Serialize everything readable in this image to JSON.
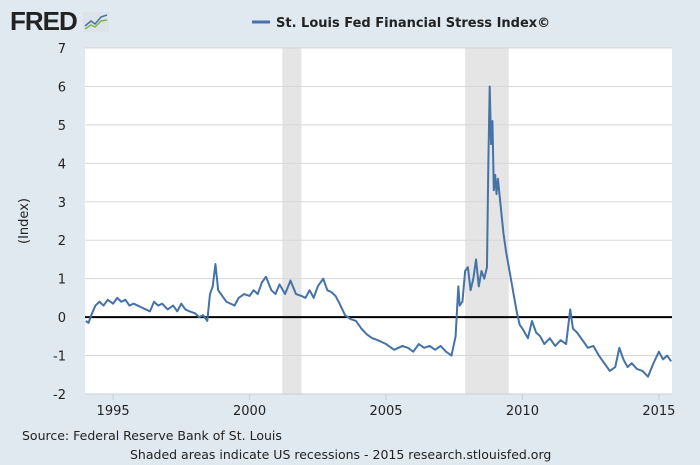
{
  "logo": "FRED",
  "chart_data": {
    "type": "line",
    "title": "St. Louis Fed Financial Stress Index©",
    "ylabel": "(Index)",
    "xlabel": "",
    "xlim": [
      1993.97,
      2015.48
    ],
    "ylim": [
      -2,
      7
    ],
    "yticks": [
      -2,
      -1,
      0,
      1,
      2,
      3,
      4,
      5,
      6,
      7
    ],
    "xticks": [
      1995,
      2000,
      2005,
      2010,
      2015
    ],
    "grid": true,
    "legend": "top",
    "series_color": "#4572a7",
    "recessions": [
      [
        2001.2,
        2001.9
      ],
      [
        2007.9,
        2009.5
      ]
    ],
    "series": [
      {
        "name": "St. Louis Fed Financial Stress Index©",
        "x": [
          1994.0,
          1994.1,
          1994.2,
          1994.35,
          1994.5,
          1994.65,
          1994.8,
          1995.0,
          1995.15,
          1995.3,
          1995.45,
          1995.6,
          1995.75,
          1995.9,
          1996.05,
          1996.2,
          1996.35,
          1996.5,
          1996.65,
          1996.8,
          1997.0,
          1997.2,
          1997.35,
          1997.5,
          1997.65,
          1997.8,
          1998.0,
          1998.15,
          1998.3,
          1998.45,
          1998.55,
          1998.65,
          1998.75,
          1998.85,
          1999.0,
          1999.15,
          1999.3,
          1999.45,
          1999.6,
          1999.8,
          2000.0,
          2000.15,
          2000.3,
          2000.45,
          2000.6,
          2000.8,
          2000.95,
          2001.1,
          2001.3,
          2001.5,
          2001.7,
          2001.9,
          2002.05,
          2002.2,
          2002.35,
          2002.5,
          2002.7,
          2002.85,
          2003.0,
          2003.15,
          2003.3,
          2003.5,
          2003.7,
          2003.9,
          2004.1,
          2004.3,
          2004.5,
          2004.7,
          2005.0,
          2005.3,
          2005.6,
          2005.8,
          2006.0,
          2006.2,
          2006.4,
          2006.6,
          2006.8,
          2007.0,
          2007.2,
          2007.4,
          2007.55,
          2007.65,
          2007.7,
          2007.8,
          2007.9,
          2008.0,
          2008.1,
          2008.2,
          2008.3,
          2008.4,
          2008.5,
          2008.6,
          2008.7,
          2008.75,
          2008.8,
          2008.85,
          2008.9,
          2008.95,
          2009.0,
          2009.05,
          2009.1,
          2009.2,
          2009.3,
          2009.4,
          2009.5,
          2009.6,
          2009.7,
          2009.8,
          2009.9,
          2010.0,
          2010.2,
          2010.35,
          2010.5,
          2010.65,
          2010.8,
          2011.0,
          2011.2,
          2011.4,
          2011.6,
          2011.75,
          2011.85,
          2012.0,
          2012.2,
          2012.4,
          2012.6,
          2012.8,
          2013.0,
          2013.2,
          2013.4,
          2013.55,
          2013.7,
          2013.85,
          2014.0,
          2014.2,
          2014.4,
          2014.6,
          2014.8,
          2015.0,
          2015.15,
          2015.3,
          2015.45
        ],
        "values": [
          -0.1,
          -0.15,
          0.05,
          0.3,
          0.4,
          0.3,
          0.45,
          0.35,
          0.5,
          0.4,
          0.45,
          0.3,
          0.35,
          0.3,
          0.25,
          0.2,
          0.15,
          0.4,
          0.3,
          0.35,
          0.2,
          0.3,
          0.15,
          0.35,
          0.2,
          0.15,
          0.1,
          0.0,
          0.05,
          -0.1,
          0.6,
          0.8,
          1.38,
          0.7,
          0.55,
          0.4,
          0.35,
          0.3,
          0.5,
          0.6,
          0.55,
          0.7,
          0.6,
          0.9,
          1.05,
          0.7,
          0.6,
          0.85,
          0.6,
          0.95,
          0.6,
          0.55,
          0.5,
          0.7,
          0.5,
          0.8,
          1.0,
          0.7,
          0.65,
          0.55,
          0.35,
          0.05,
          -0.05,
          -0.1,
          -0.3,
          -0.45,
          -0.55,
          -0.6,
          -0.7,
          -0.85,
          -0.75,
          -0.8,
          -0.9,
          -0.7,
          -0.8,
          -0.75,
          -0.85,
          -0.75,
          -0.9,
          -1.0,
          -0.5,
          0.8,
          0.3,
          0.4,
          1.2,
          1.3,
          0.7,
          1.0,
          1.5,
          0.8,
          1.2,
          1.0,
          1.3,
          4.0,
          6.0,
          4.5,
          5.1,
          3.3,
          3.7,
          3.2,
          3.6,
          2.9,
          2.2,
          1.7,
          1.3,
          0.9,
          0.5,
          0.1,
          -0.2,
          -0.3,
          -0.55,
          -0.1,
          -0.4,
          -0.5,
          -0.7,
          -0.55,
          -0.75,
          -0.6,
          -0.7,
          0.2,
          -0.3,
          -0.4,
          -0.6,
          -0.8,
          -0.75,
          -1.0,
          -1.2,
          -1.4,
          -1.3,
          -0.8,
          -1.1,
          -1.3,
          -1.2,
          -1.35,
          -1.4,
          -1.55,
          -1.2,
          -0.9,
          -1.1,
          -1.0,
          -1.15
        ]
      }
    ]
  },
  "footer": {
    "source": "Source: Federal Reserve Bank of St. Louis",
    "note": "Shaded areas indicate US recessions - 2015 research.stlouisfed.org"
  }
}
